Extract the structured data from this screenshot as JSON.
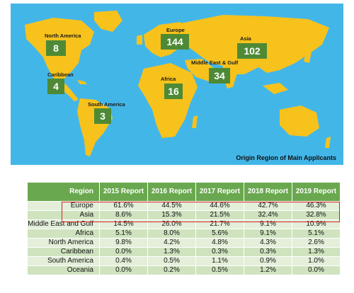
{
  "map": {
    "caption": "Origin Region of Main Applicants",
    "regions": [
      {
        "name": "North America",
        "count": "8"
      },
      {
        "name": "Europe",
        "count": "144"
      },
      {
        "name": "Asia",
        "count": "102"
      },
      {
        "name": "Caribbean",
        "count": "4"
      },
      {
        "name": "Middle East & Gulf",
        "count": "34"
      },
      {
        "name": "Africa",
        "count": "16"
      },
      {
        "name": "South America",
        "count": "3"
      }
    ],
    "colors": {
      "ocean": "#43b6e8",
      "land": "#f7c21c",
      "badge": "#4e8a35"
    }
  },
  "table": {
    "headers": [
      "Region",
      "2015 Report",
      "2016 Report",
      "2017 Report",
      "2018 Report",
      "2019 Report"
    ],
    "rows": [
      [
        "Europe",
        "61.6%",
        "44.5%",
        "44.6%",
        "42.7%",
        "46.3%"
      ],
      [
        "Asia",
        "8.6%",
        "15.3%",
        "21.5%",
        "32.4%",
        "32.8%"
      ],
      [
        "Middle East and Gulf",
        "14.5%",
        "26.0%",
        "21.7%",
        "9.1%",
        "10.9%"
      ],
      [
        "Africa",
        "5.1%",
        "8.0%",
        "5.6%",
        "9.1%",
        "5.1%"
      ],
      [
        "North America",
        "9.8%",
        "4.2%",
        "4.8%",
        "4.3%",
        "2.6%"
      ],
      [
        "Caribbean",
        "0.0%",
        "1.3%",
        "0.3%",
        "0.3%",
        "1.3%"
      ],
      [
        "South America",
        "0.4%",
        "0.5%",
        "1.1%",
        "0.9%",
        "1.0%"
      ],
      [
        "Oceania",
        "0.0%",
        "0.2%",
        "0.5%",
        "1.2%",
        "0.0%"
      ]
    ],
    "highlight_color": "#d81f26"
  }
}
